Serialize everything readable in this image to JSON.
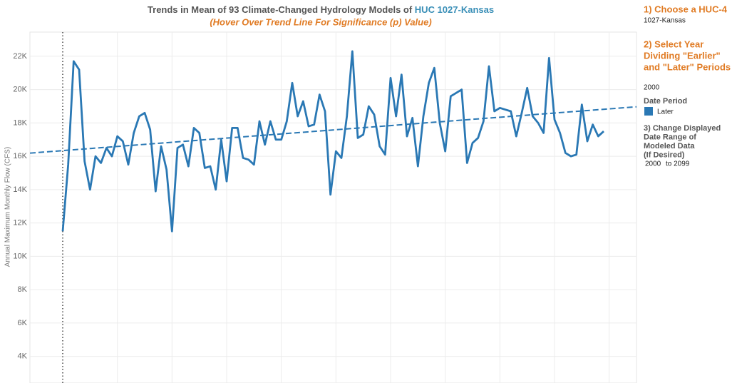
{
  "chart_data": {
    "type": "line",
    "title": "Trends in Mean of 93 Climate-Changed Hydrology Models of ",
    "title_huc": "HUC 1027-Kansas",
    "subtitle": "(Hover Over Trend Line For Significance (p) Value)",
    "y_label": "Annual Maximum Monthly Flow (CFS)",
    "x": [
      2000,
      2001,
      2002,
      2003,
      2004,
      2005,
      2006,
      2007,
      2008,
      2009,
      2010,
      2011,
      2012,
      2013,
      2014,
      2015,
      2016,
      2017,
      2018,
      2019,
      2020,
      2021,
      2022,
      2023,
      2024,
      2025,
      2026,
      2027,
      2028,
      2029,
      2030,
      2031,
      2032,
      2033,
      2034,
      2035,
      2036,
      2037,
      2038,
      2039,
      2040,
      2041,
      2042,
      2043,
      2044,
      2045,
      2046,
      2047,
      2048,
      2049,
      2050,
      2051,
      2052,
      2053,
      2054,
      2055,
      2056,
      2057,
      2058,
      2059,
      2060,
      2061,
      2062,
      2063,
      2064,
      2065,
      2066,
      2067,
      2068,
      2069,
      2070,
      2071,
      2072,
      2073,
      2074,
      2075,
      2076,
      2077,
      2078,
      2079,
      2080,
      2081,
      2082,
      2083,
      2084,
      2085,
      2086,
      2087,
      2088,
      2089,
      2090,
      2091,
      2092,
      2093,
      2094,
      2095,
      2096,
      2097,
      2098,
      2099
    ],
    "series": [
      {
        "name": "Later",
        "color": "#2a78b4",
        "values": [
          11500,
          15500,
          21700,
          21200,
          15700,
          14000,
          16000,
          15600,
          16500,
          16000,
          17200,
          16900,
          15500,
          17400,
          18400,
          18600,
          17600,
          13900,
          16600,
          15200,
          11500,
          16500,
          16700,
          15400,
          17700,
          17400,
          15300,
          15400,
          14000,
          17000,
          14500,
          17700,
          17700,
          15900,
          15800,
          15500,
          18100,
          16700,
          18100,
          17000,
          17000,
          18100,
          20400,
          18400,
          19300,
          17800,
          17900,
          19700,
          18700,
          13700,
          16300,
          15900,
          18400,
          22300,
          17100,
          17300,
          19000,
          18500,
          16600,
          16100,
          20700,
          18400,
          20900,
          17200,
          18300,
          15400,
          18400,
          20400,
          21300,
          18000,
          16300,
          19600,
          19800,
          20000,
          15600,
          16800,
          17100,
          18100,
          21400,
          18700,
          18900,
          18800,
          18700,
          17200,
          18600,
          20100,
          18400,
          18000,
          17400,
          21900,
          18200,
          17400,
          16200,
          16000,
          16100,
          19100,
          16900,
          17900,
          17200,
          17500
        ]
      }
    ],
    "trend": {
      "x": [
        1994,
        2105
      ],
      "values": [
        16190,
        18970
      ]
    },
    "xlim": [
      1994,
      2105
    ],
    "xticks": [
      2010,
      2020,
      2030,
      2040,
      2050,
      2060,
      2070,
      2080,
      2090,
      2100
    ],
    "ylim": [
      2400,
      23450
    ],
    "yticks": [
      {
        "value": 4000,
        "label": "4K"
      },
      {
        "value": 6000,
        "label": "6K"
      },
      {
        "value": 8000,
        "label": "8K"
      },
      {
        "value": 10000,
        "label": "10K"
      },
      {
        "value": 12000,
        "label": "12K"
      },
      {
        "value": 14000,
        "label": "14K"
      },
      {
        "value": 16000,
        "label": "16K"
      },
      {
        "value": 18000,
        "label": "18K"
      },
      {
        "value": 20000,
        "label": "20K"
      },
      {
        "value": 22000,
        "label": "22K"
      }
    ],
    "grid": true,
    "divider_year": 2000
  },
  "sidebar": {
    "step1": "1) Choose a HUC-4",
    "huc": "1027-Kansas",
    "step2": [
      "2) Select Year",
      "Dividing \"Earlier\"",
      "and \"Later\" Periods"
    ],
    "year": 2000,
    "legend_title": "Date Period",
    "step3": [
      "3) Change Displayed",
      "Date Range of",
      "Modeled Data",
      "(If Desired)"
    ],
    "range_start": 2000,
    "range_end_label": "to 2099"
  }
}
